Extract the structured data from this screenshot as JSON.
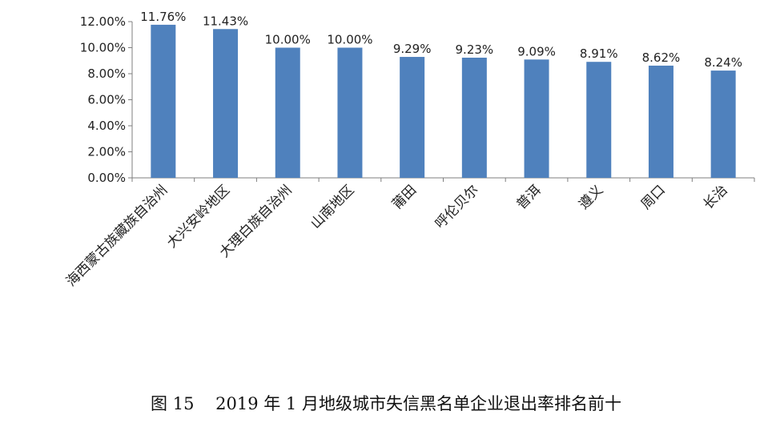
{
  "caption": "图 15    2019 年 1 月地级城市失信黑名单企业退出率排名前十",
  "chart_data": {
    "type": "bar",
    "title": "",
    "xlabel": "",
    "ylabel": "",
    "ylim": [
      0,
      12
    ],
    "yticks": [
      0,
      2,
      4,
      6,
      8,
      10,
      12
    ],
    "ytick_labels": [
      "0.00%",
      "2.00%",
      "4.00%",
      "6.00%",
      "8.00%",
      "10.00%",
      "12.00%"
    ],
    "grid": false,
    "bar_color": "#4f81bd",
    "categories": [
      "海西蒙古族藏族自治州",
      "大兴安岭地区",
      "大理白族自治州",
      "山南地区",
      "莆田",
      "呼伦贝尔",
      "普洱",
      "遵义",
      "周口",
      "长治"
    ],
    "values": [
      11.76,
      11.43,
      10.0,
      10.0,
      9.29,
      9.23,
      9.09,
      8.91,
      8.62,
      8.24
    ],
    "data_labels": [
      "11.76%",
      "11.43%",
      "10.00%",
      "10.00%",
      "9.29%",
      "9.23%",
      "9.09%",
      "8.91%",
      "8.62%",
      "8.24%"
    ]
  }
}
